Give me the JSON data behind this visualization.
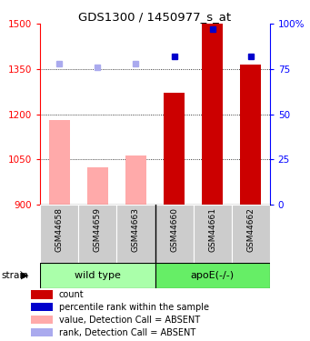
{
  "title": "GDS1300 / 1450977_s_at",
  "samples": [
    "GSM44658",
    "GSM44659",
    "GSM44663",
    "GSM44660",
    "GSM44661",
    "GSM44662"
  ],
  "groups": [
    "wild type",
    "wild type",
    "wild type",
    "apoE(-/-)",
    "apoE(-/-)",
    "apoE(-/-)"
  ],
  "group_labels": [
    "wild type",
    "apoE(-/-)"
  ],
  "ylim_left": [
    900,
    1500
  ],
  "ylim_right": [
    0,
    100
  ],
  "yticks_left": [
    900,
    1050,
    1200,
    1350,
    1500
  ],
  "yticks_right": [
    0,
    25,
    50,
    75,
    100
  ],
  "bar_values": [
    1180,
    1025,
    1062,
    1270,
    1500,
    1365
  ],
  "bar_absent": [
    true,
    true,
    true,
    false,
    false,
    false
  ],
  "rank_values": [
    78,
    76,
    78,
    82,
    97,
    82
  ],
  "rank_absent": [
    true,
    true,
    true,
    false,
    false,
    false
  ],
  "color_bar_present": "#cc0000",
  "color_bar_absent": "#ffaaaa",
  "color_rank_present": "#0000cc",
  "color_rank_absent": "#aaaaee",
  "color_group_wt": "#aaffaa",
  "color_group_apoe": "#66ee66",
  "color_sample_bg": "#cccccc",
  "bar_width": 0.55,
  "marker_size": 5,
  "legend_items": [
    {
      "label": "count",
      "color": "#cc0000"
    },
    {
      "label": "percentile rank within the sample",
      "color": "#0000cc"
    },
    {
      "label": "value, Detection Call = ABSENT",
      "color": "#ffaaaa"
    },
    {
      "label": "rank, Detection Call = ABSENT",
      "color": "#aaaaee"
    }
  ]
}
